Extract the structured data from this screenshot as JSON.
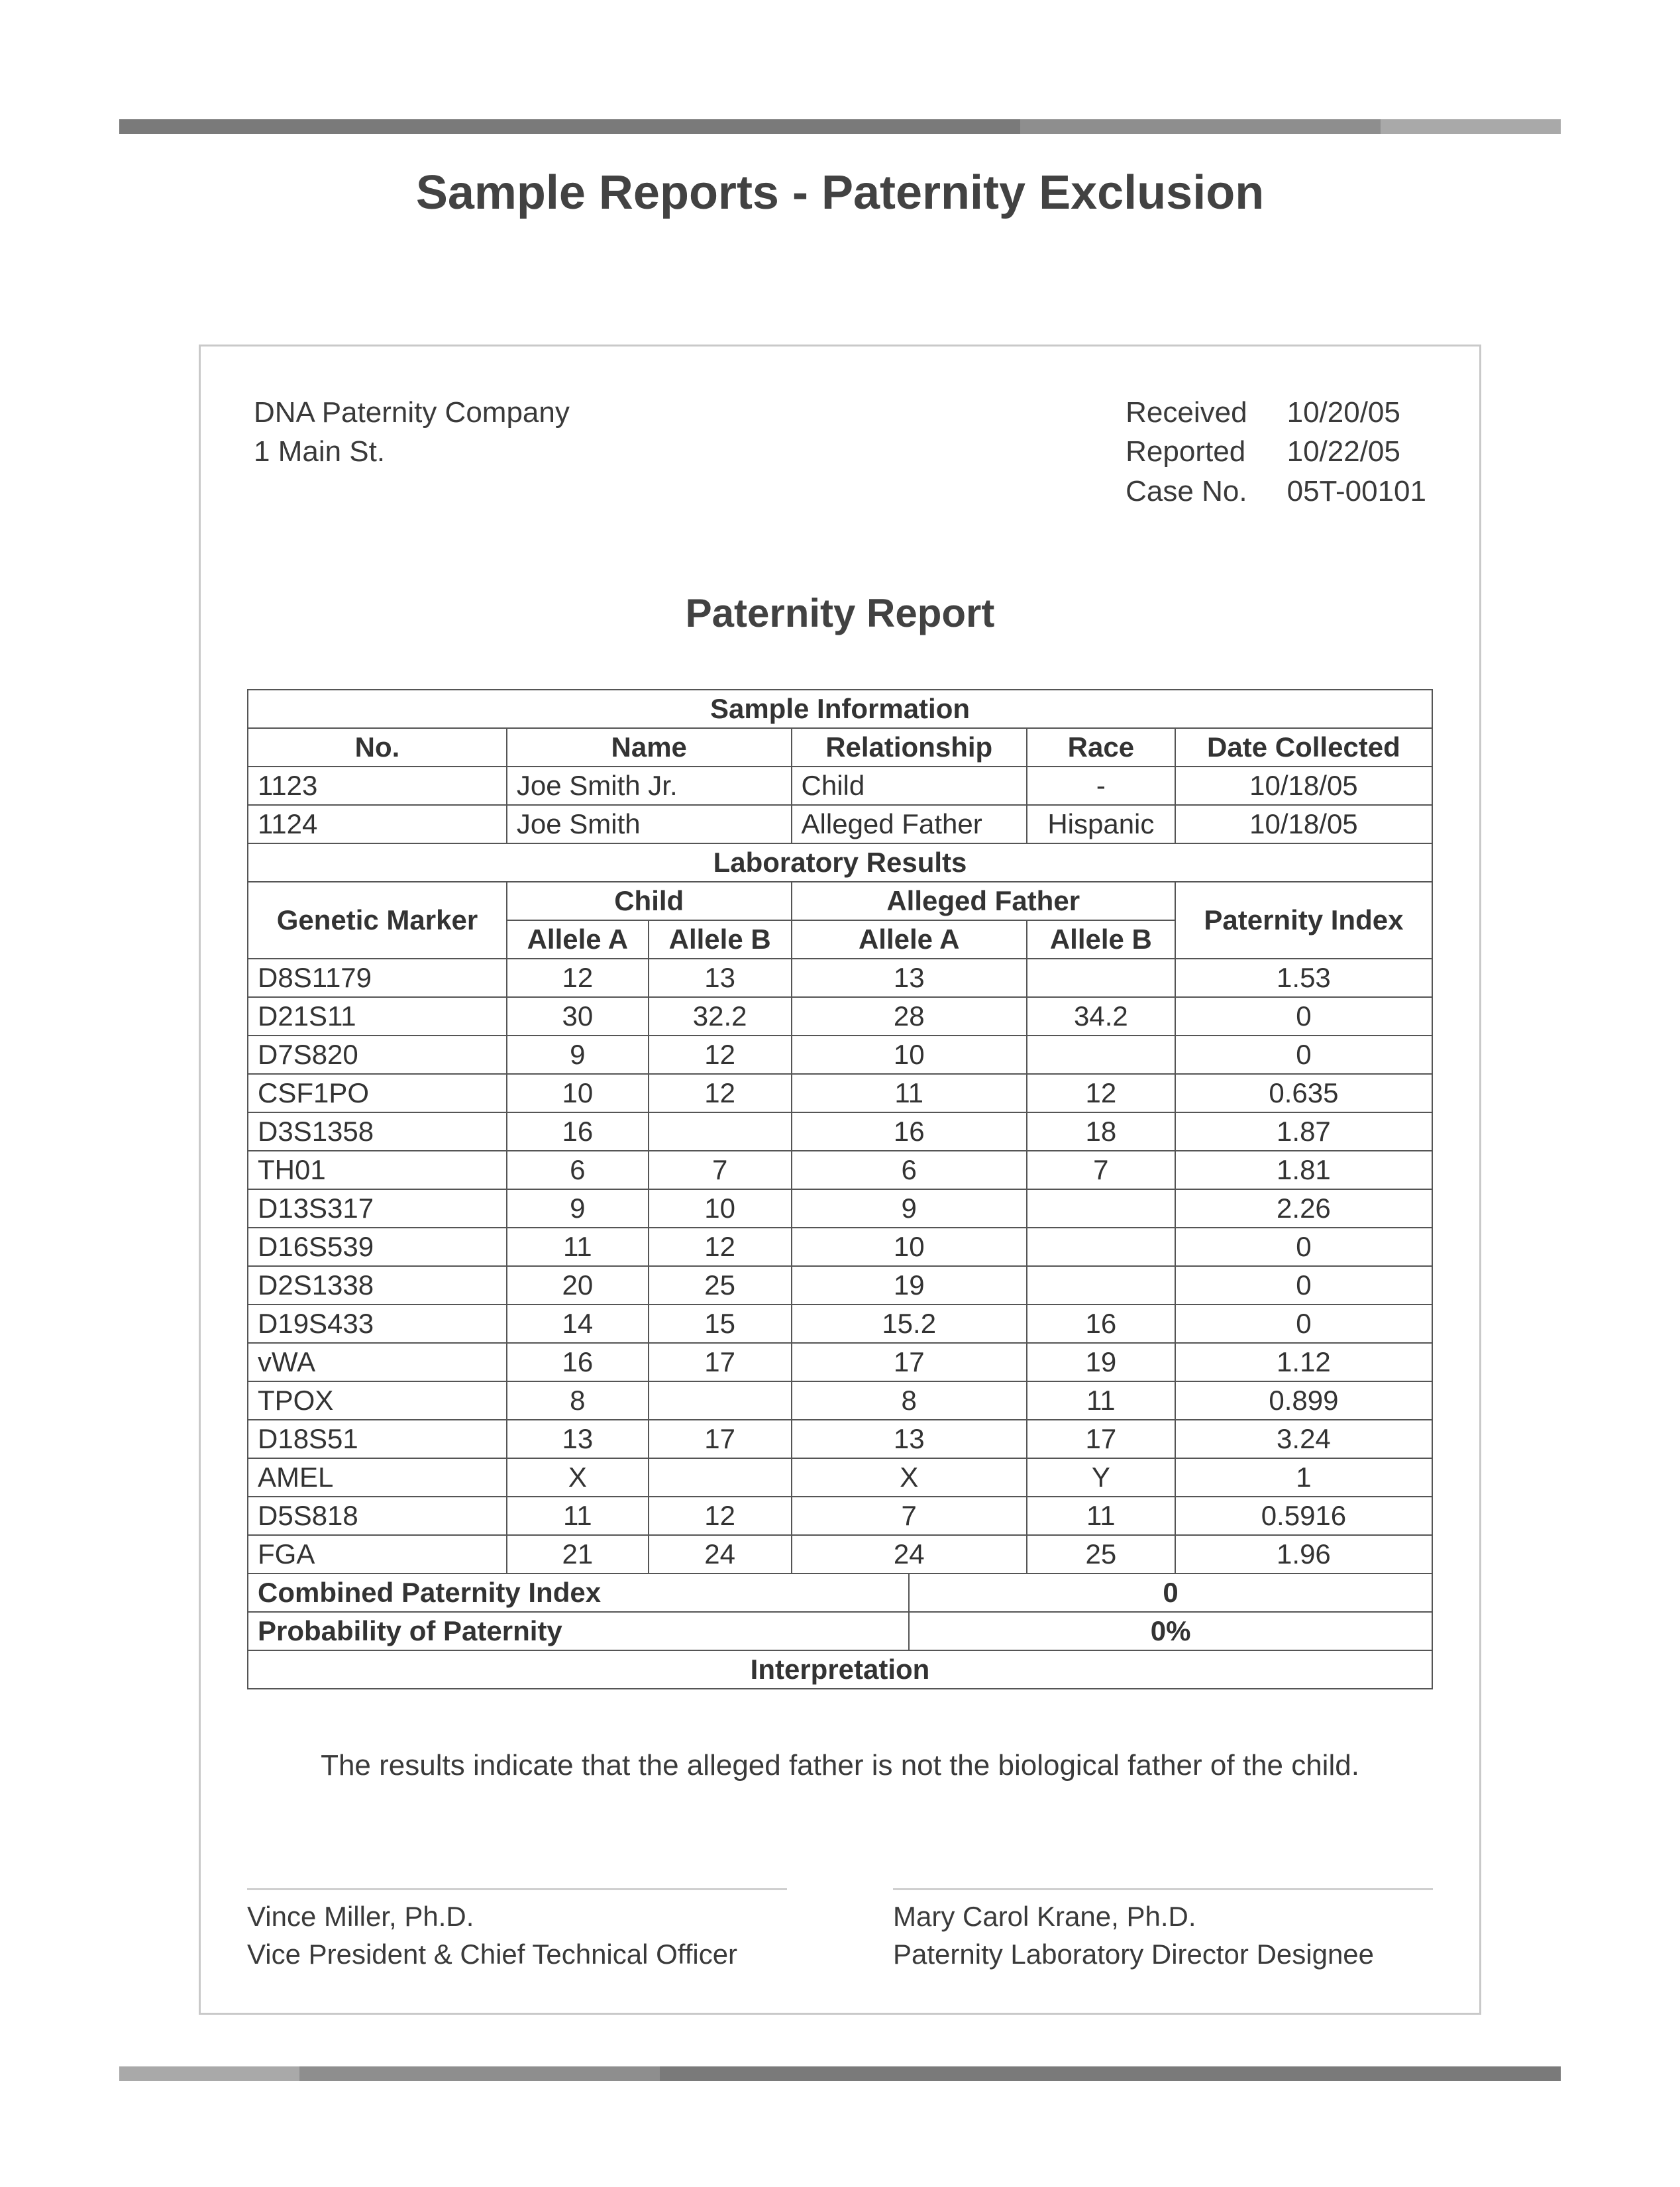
{
  "colors": {
    "text": "#3a3a3a",
    "title": "#424242",
    "border_light": "#c9c9c9",
    "table_border": "#555555",
    "sig_line": "#cfcfcf",
    "bar_dark": "#7a7a7a",
    "bar_mid": "#8e8e8e",
    "bar_light": "#a9a9a9",
    "background": "#ffffff"
  },
  "typography": {
    "font_family": "Arial",
    "doc_title_pt": 28,
    "report_title_pt": 22,
    "body_pt": 16,
    "table_pt": 15
  },
  "doc_title": "Sample Reports - Paternity Exclusion",
  "letterhead": {
    "company": "DNA Paternity Company",
    "address": "1 Main St.",
    "meta": {
      "received_label": "Received",
      "received_value": "10/20/05",
      "reported_label": "Reported",
      "reported_value": "10/22/05",
      "caseno_label": "Case No.",
      "caseno_value": "05T-00101"
    }
  },
  "report_title": "Paternity Report",
  "sample_info": {
    "heading": "Sample Information",
    "columns": [
      "No.",
      "Name",
      "Relationship",
      "Race",
      "Date Collected"
    ],
    "rows": [
      {
        "no": "1123",
        "name": "Joe Smith Jr.",
        "relationship": "Child",
        "race": "-",
        "date": "10/18/05"
      },
      {
        "no": "1124",
        "name": "Joe Smith",
        "relationship": "Alleged Father",
        "race": "Hispanic",
        "date": "10/18/05"
      }
    ]
  },
  "lab_results": {
    "heading": "Laboratory Results",
    "header": {
      "genetic_marker": "Genetic Marker",
      "child": "Child",
      "alleged_father": "Alleged Father",
      "paternity_index": "Paternity Index",
      "allele_a": "Allele A",
      "allele_b": "Allele B"
    },
    "rows": [
      {
        "marker": "D8S1179",
        "c_a": "12",
        "c_b": "13",
        "f_a": "13",
        "f_b": "",
        "pi": "1.53"
      },
      {
        "marker": "D21S11",
        "c_a": "30",
        "c_b": "32.2",
        "f_a": "28",
        "f_b": "34.2",
        "pi": "0"
      },
      {
        "marker": "D7S820",
        "c_a": "9",
        "c_b": "12",
        "f_a": "10",
        "f_b": "",
        "pi": "0"
      },
      {
        "marker": "CSF1PO",
        "c_a": "10",
        "c_b": "12",
        "f_a": "11",
        "f_b": "12",
        "pi": "0.635"
      },
      {
        "marker": "D3S1358",
        "c_a": "16",
        "c_b": "",
        "f_a": "16",
        "f_b": "18",
        "pi": "1.87"
      },
      {
        "marker": "TH01",
        "c_a": "6",
        "c_b": "7",
        "f_a": "6",
        "f_b": "7",
        "pi": "1.81"
      },
      {
        "marker": "D13S317",
        "c_a": "9",
        "c_b": "10",
        "f_a": "9",
        "f_b": "",
        "pi": "2.26"
      },
      {
        "marker": "D16S539",
        "c_a": "11",
        "c_b": "12",
        "f_a": "10",
        "f_b": "",
        "pi": "0"
      },
      {
        "marker": "D2S1338",
        "c_a": "20",
        "c_b": "25",
        "f_a": "19",
        "f_b": "",
        "pi": "0"
      },
      {
        "marker": "D19S433",
        "c_a": "14",
        "c_b": "15",
        "f_a": "15.2",
        "f_b": "16",
        "pi": "0"
      },
      {
        "marker": "vWA",
        "c_a": "16",
        "c_b": "17",
        "f_a": "17",
        "f_b": "19",
        "pi": "1.12"
      },
      {
        "marker": "TPOX",
        "c_a": "8",
        "c_b": "",
        "f_a": "8",
        "f_b": "11",
        "pi": "0.899"
      },
      {
        "marker": "D18S51",
        "c_a": "13",
        "c_b": "17",
        "f_a": "13",
        "f_b": "17",
        "pi": "3.24"
      },
      {
        "marker": "AMEL",
        "c_a": "X",
        "c_b": "",
        "f_a": "X",
        "f_b": "Y",
        "pi": "1"
      },
      {
        "marker": "D5S818",
        "c_a": "11",
        "c_b": "12",
        "f_a": "7",
        "f_b": "11",
        "pi": "0.5916"
      },
      {
        "marker": "FGA",
        "c_a": "21",
        "c_b": "24",
        "f_a": "24",
        "f_b": "25",
        "pi": "1.96"
      }
    ],
    "combined_label": "Combined Paternity Index",
    "combined_value": "0",
    "probability_label": "Probability of Paternity",
    "probability_value": "0%",
    "interpretation_heading": "Interpretation"
  },
  "interpretation_text": "The results indicate that the alleged father is not the biological father of the child.",
  "signatures": {
    "left_name": "Vince Miller, Ph.D.",
    "left_title": "Vice President & Chief Technical Officer",
    "right_name": "Mary Carol Krane, Ph.D.",
    "right_title": "Paternity Laboratory Director Designee"
  }
}
